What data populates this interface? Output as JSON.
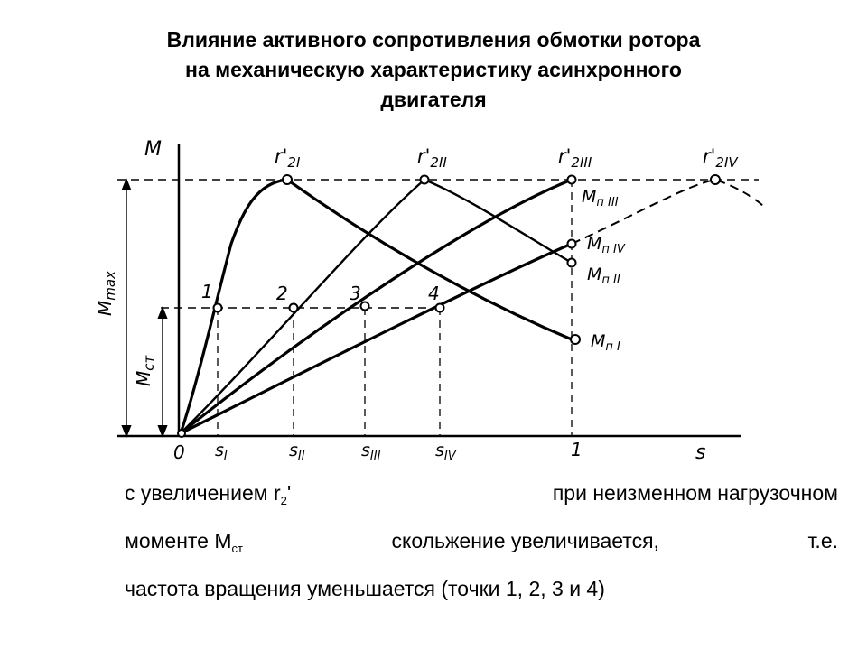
{
  "title": {
    "line1": "Влияние активного сопротивления обмотки ротора",
    "line2": "на механическую характеристику асинхронного",
    "line3": "двигателя"
  },
  "diagram": {
    "axis_y": "M",
    "axis_x": "s",
    "origin": "0",
    "one": "1",
    "mmax_base": "M",
    "mmax_sub": "max",
    "mst_base": "M",
    "mst_sub": "ст",
    "curves": [
      {
        "base": "r'",
        "sub": "2I"
      },
      {
        "base": "r'",
        "sub": "2II"
      },
      {
        "base": "r'",
        "sub": "2III"
      },
      {
        "base": "r'",
        "sub": "2IV"
      }
    ],
    "slips": [
      {
        "base": "s",
        "sub": "I"
      },
      {
        "base": "s",
        "sub": "II"
      },
      {
        "base": "s",
        "sub": "III"
      },
      {
        "base": "s",
        "sub": "IV"
      }
    ],
    "points": [
      "1",
      "2",
      "3",
      "4"
    ],
    "starting_torques": [
      {
        "base": "M",
        "sub": "п I"
      },
      {
        "base": "M",
        "sub": "п II"
      },
      {
        "base": "M",
        "sub": "п III"
      },
      {
        "base": "M",
        "sub": "п IV"
      }
    ]
  },
  "caption": {
    "part1": "с увеличением r",
    "part1_sub": "2",
    "part1_end": "'",
    "part2": "при неизменном нагрузочном",
    "part3": "моменте М",
    "part3_sub": "ст",
    "part4": "скольжение увеличивается,",
    "part5": "т.е.",
    "part6": "частота вращения уменьшается (точки 1, 2, 3 и 4)"
  }
}
